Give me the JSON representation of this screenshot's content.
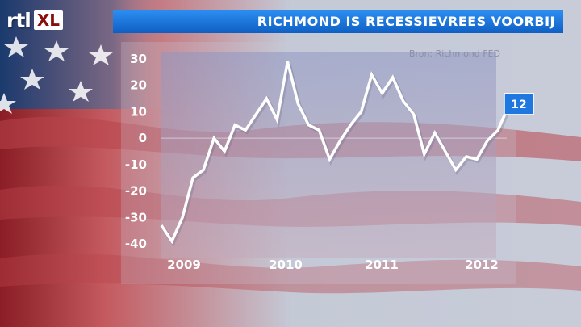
{
  "header": {
    "logo_main": "rtl",
    "logo_suffix": "XL",
    "title": "RICHMOND IS RECESSIEVREES VOORBIJ"
  },
  "source_note": "Bron: Richmond FED",
  "colors": {
    "title_bar": "#1a73d6",
    "line": "#ffffff",
    "end_label": "#1f77e0"
  },
  "chart_data": {
    "type": "line",
    "ylim": [
      -40,
      30
    ],
    "y_ticks": [
      "30",
      "20",
      "10",
      "0",
      "-10",
      "-20",
      "-30",
      "-40"
    ],
    "x_tick_labels": [
      "2009",
      "2010",
      "2011",
      "2012"
    ],
    "end_label": "12",
    "series": [
      {
        "values": [
          -33,
          -39,
          -30,
          -15,
          -12,
          0,
          -5,
          5,
          3,
          9,
          15,
          7,
          29,
          13,
          5,
          3,
          -8,
          -1,
          5,
          10,
          24,
          17,
          23,
          14,
          9,
          -6,
          2,
          -5,
          -12,
          -7,
          -8,
          -1,
          3,
          12
        ]
      }
    ]
  }
}
